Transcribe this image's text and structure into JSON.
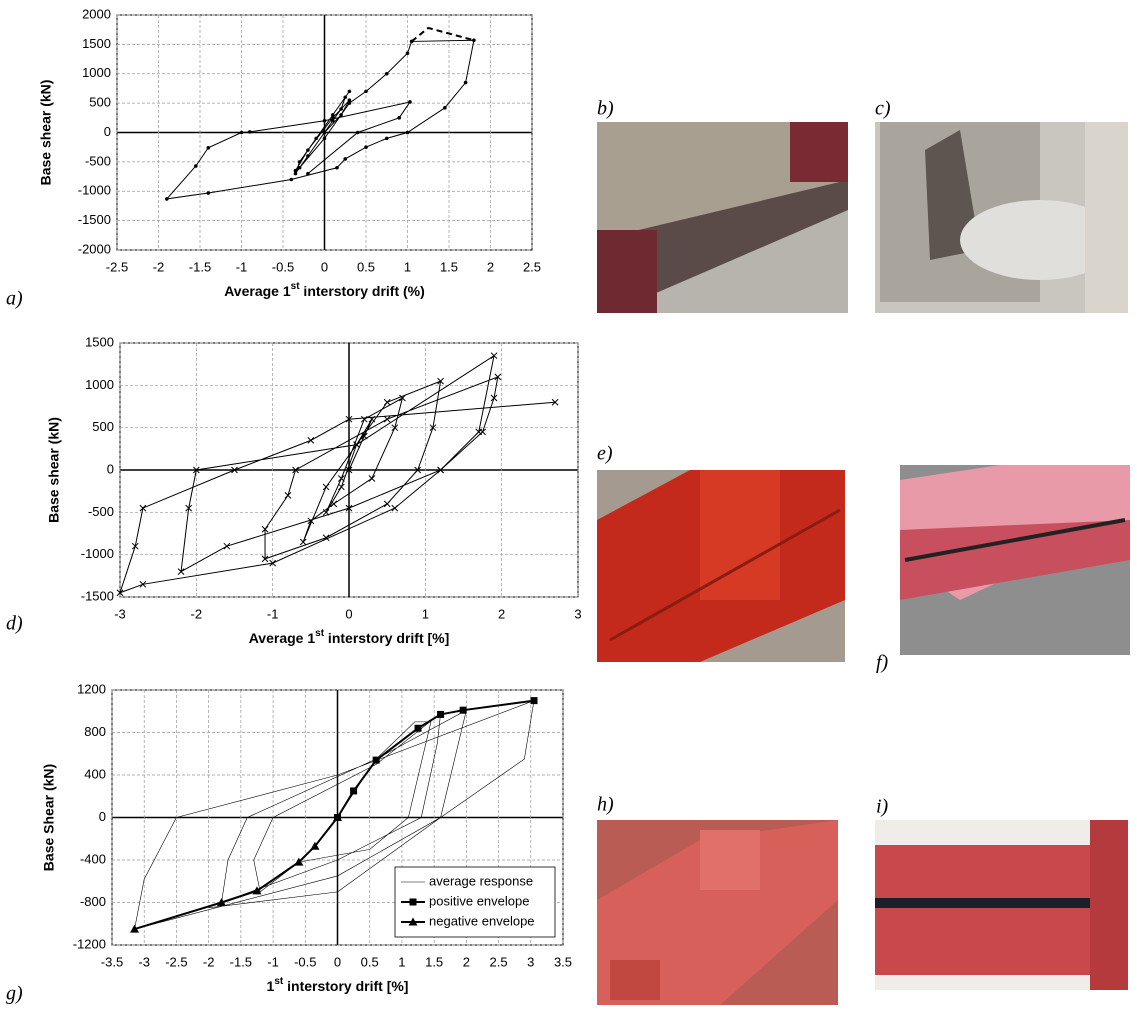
{
  "panel_labels": [
    "a)",
    "b)",
    "c)",
    "d)",
    "e)",
    "f)",
    "g)",
    "h)",
    "i)"
  ],
  "chart_data": [
    {
      "type": "line",
      "xlabel": [
        "Average 1",
        "st",
        " interstory drift (%)"
      ],
      "ylabel": "Base shear (kN)",
      "xlim": [
        -2.5,
        2.5
      ],
      "xticks": [
        -2.5,
        -2,
        -1.5,
        -1,
        -0.5,
        0,
        0.5,
        1,
        1.5,
        2,
        2.5
      ],
      "ylim": [
        -2000,
        2000
      ],
      "yticks": [
        -2000,
        -1500,
        -1000,
        -500,
        0,
        500,
        1000,
        1500,
        2000
      ],
      "grid": true,
      "series": [
        {
          "color": "#000000",
          "marker": "dot",
          "dash": false,
          "line_width": 1,
          "x": [
            0,
            0.1,
            0.2,
            0.25,
            0.3,
            0.1,
            -0.1,
            -0.3,
            -0.35,
            -0.2,
            0,
            0.2,
            0.3,
            0.1,
            -0.2,
            -0.35,
            -0.3,
            0,
            0.3,
            0.5,
            0.75,
            1,
            1.05,
            1.8,
            1.7,
            1.45,
            1,
            0.75,
            0.5,
            0.25,
            0.15,
            -0.4,
            -1.4,
            -1.9,
            -1.55,
            -1.4,
            -1,
            -0.9,
            0,
            1.03,
            0.9,
            0.4,
            -0.2
          ],
          "values": [
            0,
            200,
            400,
            600,
            700,
            300,
            -100,
            -500,
            -700,
            -400,
            0,
            300,
            550,
            250,
            -300,
            -650,
            -600,
            -100,
            500,
            700,
            1000,
            1350,
            1550,
            1570,
            850,
            420,
            0,
            -100,
            -250,
            -450,
            -600,
            -800,
            -1030,
            -1130,
            -570,
            -260,
            0,
            10,
            200,
            520,
            250,
            0,
            -700
          ]
        },
        {
          "color": "#000000",
          "marker": "none",
          "dash": true,
          "line_width": 2,
          "x": [
            1.05,
            1.25,
            1.8
          ],
          "values": [
            1550,
            1780,
            1570
          ]
        }
      ]
    },
    {
      "type": "line",
      "xlabel": [
        "Average 1",
        "st",
        " interstory drift [%]"
      ],
      "ylabel": "Base shear (kN)",
      "xlim": [
        -3,
        3
      ],
      "xticks": [
        -3,
        -2,
        -1,
        0,
        1,
        2,
        3
      ],
      "ylim": [
        -1500,
        1500
      ],
      "yticks": [
        -1500,
        -1000,
        -500,
        0,
        500,
        1000,
        1500
      ],
      "grid": true,
      "series": [
        {
          "color": "#000000",
          "marker": "x",
          "dash": false,
          "line_width": 1,
          "x": [
            0,
            0.2,
            0.3,
            0.1,
            -0.1,
            -0.3,
            -0.1,
            0.2,
            0.7,
            0.6,
            0.3,
            -0.2,
            -0.5,
            -0.6,
            -0.3,
            0.5,
            1.2,
            1.1,
            0.9,
            0.5,
            -0.3,
            -1.1,
            -1.1,
            -0.8,
            -0.7,
            0.5,
            1.95,
            1.9,
            1.75,
            1.2,
            0,
            -1.6,
            -2.2,
            -2.1,
            -2,
            0.1,
            1.9,
            1.7,
            1.2,
            0.6,
            -1,
            -2.7,
            -3,
            -2.8,
            -2.7,
            -1.5,
            -0.5,
            0,
            2.7
          ],
          "values": [
            0,
            400,
            600,
            300,
            -200,
            -500,
            -100,
            600,
            850,
            500,
            -100,
            -400,
            -600,
            -850,
            -200,
            800,
            1050,
            500,
            0,
            -400,
            -800,
            -1050,
            -700,
            -300,
            0,
            600,
            1100,
            850,
            450,
            0,
            -450,
            -900,
            -1200,
            -450,
            0,
            300,
            1350,
            450,
            0,
            -450,
            -1100,
            -1350,
            -1450,
            -900,
            -450,
            0,
            350,
            600,
            800
          ]
        }
      ]
    },
    {
      "type": "line",
      "xlabel": [
        "1",
        "st",
        " interstory drift [%]"
      ],
      "ylabel": "Base Shear (kN)",
      "xlim": [
        -3.5,
        3.5
      ],
      "xticks": [
        -3.5,
        -3,
        -2.5,
        -2,
        -1.5,
        -1,
        -0.5,
        0,
        0.5,
        1,
        1.5,
        2,
        2.5,
        3,
        3.5
      ],
      "ylim": [
        -1200,
        1200
      ],
      "yticks": [
        -1200,
        -800,
        -400,
        0,
        400,
        800,
        1200
      ],
      "grid": true,
      "legend": "lower right",
      "series": [
        {
          "name": "average response",
          "color": "#000000",
          "marker": "none",
          "dash": false,
          "line_width": 0.6,
          "x": [
            0,
            0.6,
            1.2,
            1.45,
            1.1,
            0.5,
            -0.6,
            -1.2,
            -1.3,
            -1,
            0.6,
            1.6,
            1.55,
            1.3,
            0,
            -1.8,
            -1.7,
            -1.4,
            0.6,
            2,
            1.6,
            0,
            -3.15,
            -3,
            -2.5,
            0,
            3.05,
            2.9,
            1.6,
            0,
            -2
          ],
          "values": [
            0,
            550,
            900,
            900,
            0,
            -300,
            -420,
            -700,
            -400,
            0,
            500,
            980,
            700,
            0,
            -400,
            -800,
            -400,
            0,
            550,
            1010,
            0,
            -550,
            -1050,
            -580,
            0,
            400,
            1100,
            550,
            0,
            -700,
            -850
          ]
        },
        {
          "name": "positive envelope",
          "color": "#000000",
          "marker": "square",
          "dash": false,
          "line_width": 2,
          "x": [
            0,
            0.25,
            0.6,
            1.25,
            1.6,
            1.95,
            3.05
          ],
          "values": [
            0,
            250,
            540,
            840,
            970,
            1010,
            1100
          ]
        },
        {
          "name": "negative envelope",
          "color": "#000000",
          "marker": "triangle",
          "dash": false,
          "line_width": 2,
          "x": [
            0,
            -0.35,
            -0.6,
            -1.25,
            -1.8,
            -3.15
          ],
          "values": [
            0,
            -270,
            -420,
            -690,
            -800,
            -1050
          ]
        }
      ]
    }
  ]
}
